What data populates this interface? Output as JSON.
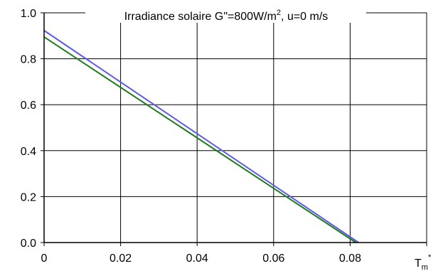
{
  "chart_data": {
    "type": "line",
    "title": "Irradiance solaire G\"=800W/m², u=0 m/s",
    "xlabel": "Tm*",
    "ylabel": "",
    "xlim": [
      0,
      0.1
    ],
    "ylim": [
      0,
      1.0
    ],
    "x_ticks": [
      "0",
      "0.02",
      "0.04",
      "0.06",
      "0.08"
    ],
    "y_ticks": [
      "0.0",
      "0.2",
      "0.4",
      "0.6",
      "0.8",
      "1.0"
    ],
    "grid": true,
    "series": [
      {
        "color": "#5b5be6",
        "x": [
          0,
          0.0822
        ],
        "y": [
          0.923,
          0.0
        ]
      },
      {
        "color": "#1f7a1f",
        "x": [
          0,
          0.0815
        ],
        "y": [
          0.895,
          0.0
        ]
      }
    ]
  }
}
